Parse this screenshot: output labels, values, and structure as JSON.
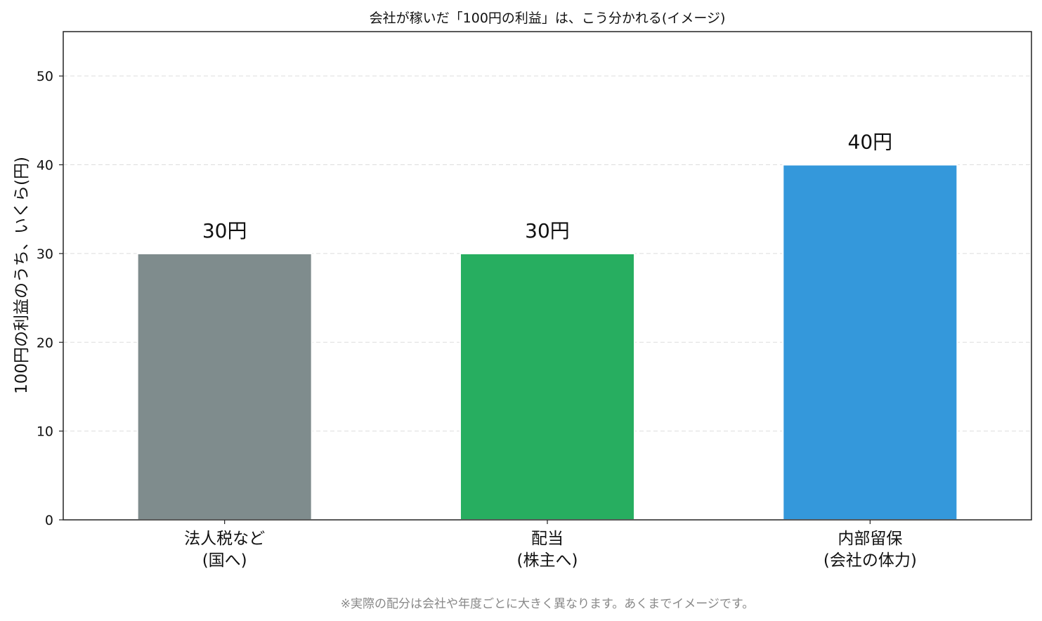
{
  "chart_data": {
    "type": "bar",
    "title": "会社が稼いだ「100円の利益」は、こう分かれる(イメージ)",
    "ylabel": "100円の利益のうち、いくら(円)",
    "xlabel": "",
    "ylim": [
      0,
      55
    ],
    "yticks": [
      "0",
      "10",
      "20",
      "30",
      "40",
      "50"
    ],
    "ytick_values": [
      0,
      10,
      20,
      30,
      40,
      50
    ],
    "grid": "y-dashed",
    "categories": [
      [
        "法人税など",
        "(国へ)"
      ],
      [
        "配当",
        "(株主へ)"
      ],
      [
        "内部留保",
        "(会社の体力)"
      ]
    ],
    "values": [
      30,
      30,
      40
    ],
    "data_labels": [
      "30円",
      "30円",
      "40円"
    ],
    "colors": [
      "#7f8c8d",
      "#27ae60",
      "#3498db"
    ]
  },
  "footnote": "※実際の配分は会社や年度ごとに大きく異なります。あくまでイメージです。"
}
